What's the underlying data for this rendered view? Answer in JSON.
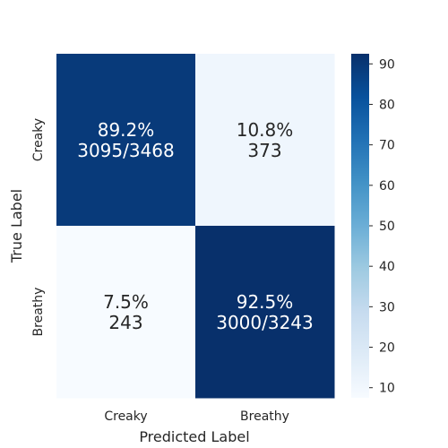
{
  "chart_data": {
    "type": "heatmap",
    "xlabel": "Predicted Label",
    "ylabel": "True Label",
    "x_categories": [
      "Creaky",
      "Breathy"
    ],
    "y_categories": [
      "Creaky",
      "Breathy"
    ],
    "cells": [
      {
        "row": 0,
        "col": 0,
        "value": 89.2,
        "pct_label": "89.2%",
        "count_label": "3095/3468"
      },
      {
        "row": 0,
        "col": 1,
        "value": 10.8,
        "pct_label": "10.8%",
        "count_label": "373"
      },
      {
        "row": 1,
        "col": 0,
        "value": 7.5,
        "pct_label": "7.5%",
        "count_label": "243"
      },
      {
        "row": 1,
        "col": 1,
        "value": 92.5,
        "pct_label": "92.5%",
        "count_label": "3000/3243"
      }
    ],
    "colorbar": {
      "min": 7.5,
      "max": 92.5,
      "ticks": [
        10,
        20,
        30,
        40,
        50,
        60,
        70,
        80,
        90
      ],
      "colormap": "Blues"
    }
  }
}
